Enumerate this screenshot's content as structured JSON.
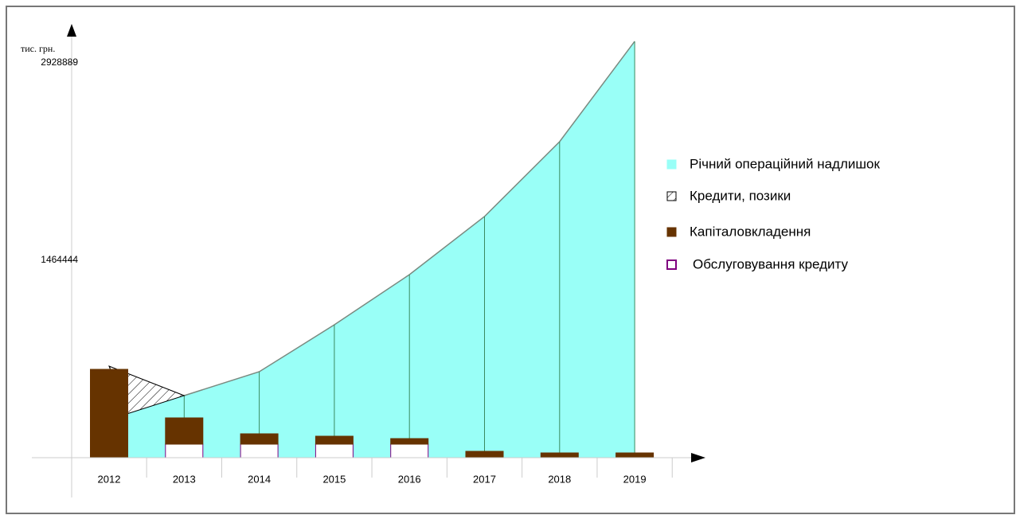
{
  "chart_data": {
    "type": "combo",
    "y_label": "тис. грн.",
    "categories": [
      "2012",
      "2013",
      "2014",
      "2015",
      "2016",
      "2017",
      "2018",
      "2019"
    ],
    "ylim": [
      0,
      3218000
    ],
    "yticks": [
      1464444,
      2928889
    ],
    "series": [
      {
        "name": "Річний операційний надлишок",
        "type": "area",
        "color": "#99fff7",
        "values": [
          283000,
          460600,
          637700,
          986100,
          1358100,
          1789200,
          2344300,
          3088300
        ]
      },
      {
        "name": "Кредити, позики",
        "type": "hatch",
        "color": "#000000",
        "values": [
          679100,
          0,
          0,
          0,
          0,
          0,
          0,
          0
        ]
      },
      {
        "name": "Капіталовкладення",
        "type": "bar",
        "color": "#663300",
        "values": [
          655400,
          194900,
          76800,
          59000,
          41300,
          47200,
          35400,
          35400
        ]
      },
      {
        "name": "Обслуговування кредиту",
        "type": "bar",
        "color": "#ffffff",
        "edge": "#800080",
        "values": [
          0,
          100400,
          100400,
          100400,
          100400,
          0,
          0,
          0
        ]
      }
    ],
    "legend": "right"
  }
}
